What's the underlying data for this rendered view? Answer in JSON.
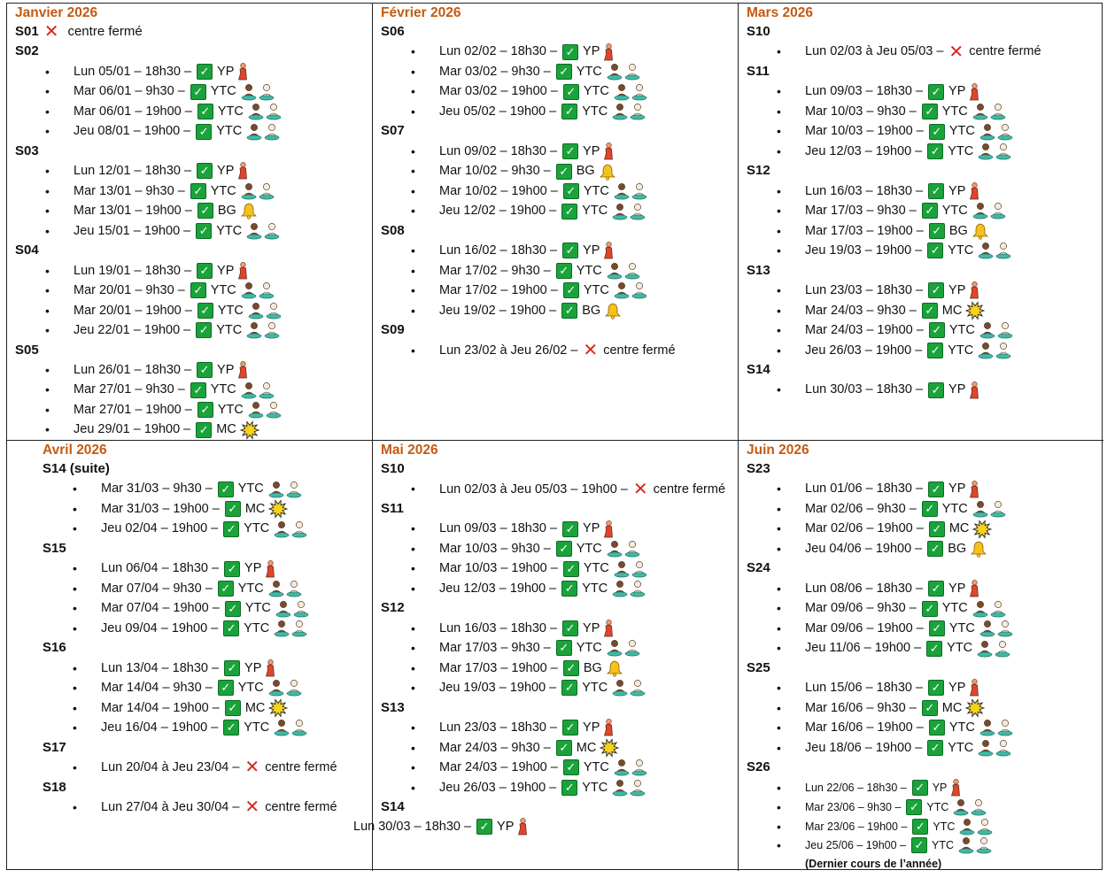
{
  "glyphs": {
    "check": "✓",
    "cross": "✕",
    "bullet": "•"
  },
  "colors": {
    "month": "#c55a11",
    "check": "#1aa33a",
    "cross": "#d32a1e",
    "figure_skin": "#7a4a2c",
    "figure_teal": "#3fb9a6",
    "person_red": "#e0452c",
    "bell": "#f5c21b",
    "burst": "#f5d21b"
  },
  "months": [
    {
      "title": "Janvier 2026",
      "weeks": [
        {
          "label": "S01",
          "closed_inline": "centre fermé",
          "items": []
        },
        {
          "label": "S02",
          "items": [
            {
              "text": "Lun 05/01 – 18h30 –",
              "tag": "YP",
              "icon": "person-icon"
            },
            {
              "text": "Mar 06/01 – 9h30 –",
              "tag": "YTC",
              "icon": "meditation-icon"
            },
            {
              "text": "Mar 06/01 – 19h00 –",
              "tag": "YTC",
              "icon": "meditation-icon"
            },
            {
              "text": "Jeu 08/01 – 19h00 –",
              "tag": "YTC",
              "icon": "meditation-icon"
            }
          ]
        },
        {
          "label": "S03",
          "items": [
            {
              "text": "Lun 12/01 – 18h30 –",
              "tag": "YP",
              "icon": "person-icon"
            },
            {
              "text": "Mar 13/01 – 9h30 –",
              "tag": "YTC",
              "icon": "meditation-icon"
            },
            {
              "text": "Mar 13/01 – 19h00 –",
              "tag": "BG",
              "icon": "bell-icon"
            },
            {
              "text": "Jeu 15/01 – 19h00 –",
              "tag": "YTC",
              "icon": "meditation-icon"
            }
          ]
        },
        {
          "label": "S04",
          "items": [
            {
              "text": "Lun 19/01 – 18h30 –",
              "tag": "YP",
              "icon": "person-icon"
            },
            {
              "text": "Mar 20/01 – 9h30 –",
              "tag": "YTC",
              "icon": "meditation-icon"
            },
            {
              "text": "Mar 20/01 – 19h00 –",
              "tag": "YTC",
              "icon": "meditation-icon"
            },
            {
              "text": "Jeu 22/01 – 19h00 –",
              "tag": "YTC",
              "icon": "meditation-icon"
            }
          ]
        },
        {
          "label": "S05",
          "items": [
            {
              "text": "Lun 26/01 – 18h30 –",
              "tag": "YP",
              "icon": "person-icon"
            },
            {
              "text": "Mar 27/01 – 9h30 –",
              "tag": "YTC",
              "icon": "meditation-icon"
            },
            {
              "text": "Mar 27/01 – 19h00 –",
              "tag": "YTC",
              "icon": "meditation-icon"
            },
            {
              "text": "Jeu 29/01 – 19h00 –",
              "tag": "MC",
              "icon": "burst-icon"
            }
          ]
        }
      ]
    },
    {
      "title": "Février 2026",
      "weeks": [
        {
          "label": "S06",
          "items": [
            {
              "text": "Lun 02/02 – 18h30 –",
              "tag": "YP",
              "icon": "person-icon"
            },
            {
              "text": "Mar 03/02 – 9h30 –",
              "tag": "YTC",
              "icon": "meditation-icon"
            },
            {
              "text": "Mar 03/02 – 19h00 –",
              "tag": "YTC",
              "icon": "meditation-icon"
            },
            {
              "text": "Jeu 05/02 – 19h00 –",
              "tag": "YTC",
              "icon": "meditation-icon"
            }
          ]
        },
        {
          "label": "S07",
          "items": [
            {
              "text": "Lun 09/02 – 18h30 –",
              "tag": "YP",
              "icon": "person-icon"
            },
            {
              "text": "Mar 10/02 – 9h30 –",
              "tag": "BG",
              "icon": "bell-icon"
            },
            {
              "text": "Mar 10/02 – 19h00 –",
              "tag": "YTC",
              "icon": "meditation-icon"
            },
            {
              "text": "Jeu 12/02 – 19h00 –",
              "tag": "YTC",
              "icon": "meditation-icon"
            }
          ]
        },
        {
          "label": "S08",
          "items": [
            {
              "text": "Lun 16/02 – 18h30 –",
              "tag": "YP",
              "icon": "person-icon"
            },
            {
              "text": "Mar 17/02 – 9h30 –",
              "tag": "YTC",
              "icon": "meditation-icon"
            },
            {
              "text": "Mar 17/02 – 19h00 –",
              "tag": "YTC",
              "icon": "meditation-icon"
            },
            {
              "text": "Jeu 19/02 – 19h00 –",
              "tag": "BG",
              "icon": "bell-icon"
            }
          ]
        },
        {
          "label": "S09",
          "items": [
            {
              "text": "Lun 23/02 à Jeu 26/02 –",
              "closed": "centre fermé"
            }
          ]
        }
      ]
    },
    {
      "title": "Mars 2026",
      "weeks": [
        {
          "label": "S10",
          "items": [
            {
              "text": "Lun 02/03 à Jeu 05/03 –",
              "closed": "centre fermé"
            }
          ]
        },
        {
          "label": "S11",
          "items": [
            {
              "text": "Lun 09/03 – 18h30 –",
              "tag": "YP",
              "icon": "person-icon"
            },
            {
              "text": "Mar 10/03 – 9h30 –",
              "tag": "YTC",
              "icon": "meditation-icon"
            },
            {
              "text": "Mar 10/03 – 19h00 –",
              "tag": "YTC",
              "icon": "meditation-icon"
            },
            {
              "text": "Jeu 12/03 – 19h00 –",
              "tag": "YTC",
              "icon": "meditation-icon"
            }
          ]
        },
        {
          "label": "S12",
          "items": [
            {
              "text": "Lun 16/03 – 18h30 –",
              "tag": "YP",
              "icon": "person-icon"
            },
            {
              "text": "Mar 17/03 – 9h30 –",
              "tag": "YTC",
              "icon": "meditation-icon"
            },
            {
              "text": "Mar 17/03 – 19h00 –",
              "tag": "BG",
              "icon": "bell-icon"
            },
            {
              "text": "Jeu 19/03 – 19h00 –",
              "tag": "YTC",
              "icon": "meditation-icon"
            }
          ]
        },
        {
          "label": "S13",
          "items": [
            {
              "text": "Lun 23/03 – 18h30 –",
              "tag": "YP",
              "icon": "person-icon"
            },
            {
              "text": "Mar 24/03 – 9h30 –",
              "tag": "MC",
              "icon": "burst-icon"
            },
            {
              "text": "Mar 24/03 – 19h00 –",
              "tag": "YTC",
              "icon": "meditation-icon"
            },
            {
              "text": "Jeu 26/03 – 19h00 –",
              "tag": "YTC",
              "icon": "meditation-icon"
            }
          ]
        },
        {
          "label": "S14",
          "items": [
            {
              "text": "Lun 30/03 – 18h30 –",
              "tag": "YP",
              "icon": "person-icon"
            }
          ]
        }
      ]
    },
    {
      "title": "Avril 2026",
      "indent": true,
      "weeks": [
        {
          "label": "S14 (suite)",
          "items": [
            {
              "text": "Mar 31/03 – 9h30 –",
              "tag": "YTC",
              "icon": "meditation-icon"
            },
            {
              "text": "Mar 31/03 – 19h00 –",
              "tag": "MC",
              "icon": "burst-icon"
            },
            {
              "text": "Jeu 02/04 – 19h00 –",
              "tag": "YTC",
              "icon": "meditation-icon"
            }
          ]
        },
        {
          "label": "S15",
          "items": [
            {
              "text": "Lun 06/04 – 18h30 –",
              "tag": "YP",
              "icon": "person-icon"
            },
            {
              "text": "Mar 07/04 – 9h30 –",
              "tag": "YTC",
              "icon": "meditation-icon"
            },
            {
              "text": "Mar 07/04 – 19h00 –",
              "tag": "YTC",
              "icon": "meditation-icon"
            },
            {
              "text": "Jeu 09/04 – 19h00 –",
              "tag": "YTC",
              "icon": "meditation-icon"
            }
          ]
        },
        {
          "label": "S16",
          "items": [
            {
              "text": "Lun 13/04 – 18h30 –",
              "tag": "YP",
              "icon": "person-icon"
            },
            {
              "text": "Mar 14/04 – 9h30 –",
              "tag": "YTC",
              "icon": "meditation-icon"
            },
            {
              "text": "Mar 14/04 – 19h00 –",
              "tag": "MC",
              "icon": "burst-icon"
            },
            {
              "text": "Jeu 16/04 – 19h00 –",
              "tag": "YTC",
              "icon": "meditation-icon"
            }
          ]
        },
        {
          "label": "S17",
          "items": [
            {
              "text": "Lun 20/04 à Jeu 23/04 –",
              "closed": "centre fermé"
            }
          ]
        },
        {
          "label": "S18",
          "items": [
            {
              "text": "Lun 27/04 à Jeu 30/04 –",
              "closed": "centre fermé"
            }
          ]
        }
      ]
    },
    {
      "title": "Mai 2026",
      "weeks": [
        {
          "label": "S10",
          "items": [
            {
              "text": "Lun 02/03 à Jeu 05/03 – 19h00 –",
              "closed": "centre fermé",
              "wrap": true
            }
          ]
        },
        {
          "label": "S11",
          "items": [
            {
              "text": "Lun 09/03 – 18h30 –",
              "tag": "YP",
              "icon": "person-icon"
            },
            {
              "text": "Mar 10/03 – 9h30 –",
              "tag": "YTC",
              "icon": "meditation-icon"
            },
            {
              "text": "Mar 10/03 – 19h00 –",
              "tag": "YTC",
              "icon": "meditation-icon"
            },
            {
              "text": "Jeu 12/03 – 19h00 –",
              "tag": "YTC",
              "icon": "meditation-icon"
            }
          ]
        },
        {
          "label": "S12",
          "items": [
            {
              "text": "Lun 16/03 – 18h30 –",
              "tag": "YP",
              "icon": "person-icon"
            },
            {
              "text": "Mar 17/03 – 9h30 –",
              "tag": "YTC",
              "icon": "meditation-icon"
            },
            {
              "text": "Mar 17/03 – 19h00 –",
              "tag": "BG",
              "icon": "bell-icon"
            },
            {
              "text": "Jeu 19/03 – 19h00 –",
              "tag": "YTC",
              "icon": "meditation-icon"
            }
          ]
        },
        {
          "label": "S13",
          "items": [
            {
              "text": "Lun 23/03 – 18h30 –",
              "tag": "YP",
              "icon": "person-icon"
            },
            {
              "text": "Mar 24/03 – 9h30 –",
              "tag": "MC",
              "icon": "burst-icon"
            },
            {
              "text": "Mar 24/03 – 19h00 –",
              "tag": "YTC",
              "icon": "meditation-icon"
            },
            {
              "text": "Jeu 26/03 – 19h00 –",
              "tag": "YTC",
              "icon": "meditation-icon"
            }
          ]
        },
        {
          "label": "S14",
          "items": [],
          "free": [
            {
              "text": "Lun 30/03 – 18h30 –",
              "tag": "YP",
              "icon": "person-icon"
            }
          ]
        }
      ]
    },
    {
      "title": "Juin 2026",
      "weeks": [
        {
          "label": "S23",
          "items": [
            {
              "text": "Lun 01/06 – 18h30 –",
              "tag": "YP",
              "icon": "person-icon"
            },
            {
              "text": "Mar 02/06 – 9h30 –",
              "tag": "YTC",
              "icon": "meditation-icon"
            },
            {
              "text": "Mar 02/06 – 19h00 –",
              "tag": "MC",
              "icon": "burst-icon"
            },
            {
              "text": "Jeu 04/06 – 19h00 –",
              "tag": "BG",
              "icon": "bell-icon"
            }
          ]
        },
        {
          "label": "S24",
          "items": [
            {
              "text": "Lun 08/06 – 18h30 –",
              "tag": "YP",
              "icon": "person-icon"
            },
            {
              "text": "Mar 09/06 – 9h30 –",
              "tag": "YTC",
              "icon": "meditation-icon"
            },
            {
              "text": "Mar 09/06 – 19h00 –",
              "tag": "YTC",
              "icon": "meditation-icon"
            },
            {
              "text": "Jeu 11/06 – 19h00 –",
              "tag": "YTC",
              "icon": "meditation-icon"
            }
          ]
        },
        {
          "label": "S25",
          "items": [
            {
              "text": "Lun 15/06 – 18h30 –",
              "tag": "YP",
              "icon": "person-icon"
            },
            {
              "text": "Mar 16/06 – 9h30 –",
              "tag": "MC",
              "icon": "burst-icon"
            },
            {
              "text": "Mar 16/06 – 19h00 –",
              "tag": "YTC",
              "icon": "meditation-icon"
            },
            {
              "text": "Jeu 18/06 – 19h00 –",
              "tag": "YTC",
              "icon": "meditation-icon"
            }
          ]
        },
        {
          "label": "S26",
          "small": true,
          "items": [
            {
              "text": "Lun 22/06 – 18h30 –",
              "tag": "YP",
              "icon": "person-icon"
            },
            {
              "text": "Mar 23/06 – 9h30 –",
              "tag": "YTC",
              "icon": "meditation-icon"
            },
            {
              "text": "Mar 23/06 – 19h00 –",
              "tag": "YTC",
              "icon": "meditation-icon"
            },
            {
              "text": "Jeu 25/06 – 19h00 –",
              "tag": "YTC",
              "icon": "meditation-icon",
              "note": "(Dernier cours de l’année)"
            }
          ]
        }
      ]
    }
  ]
}
